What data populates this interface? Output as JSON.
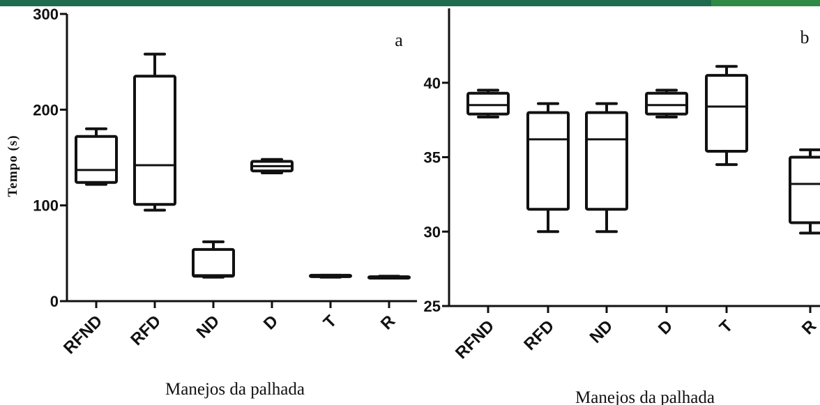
{
  "colors": {
    "top_band": "#1f6b4f",
    "top_band_accent": "#2f8a45",
    "ink": "#111111",
    "background": "#ffffff"
  },
  "chart_data": [
    {
      "type": "box",
      "panel_label": "a",
      "ylabel": "Tempo (s)",
      "xlabel": "Manejos da palhada",
      "ylim": [
        0,
        300
      ],
      "yticks": [
        "0",
        "100",
        "200",
        "300"
      ],
      "categories": [
        "RFND",
        "RFD",
        "ND",
        "D",
        "T",
        "R"
      ],
      "boxes": [
        {
          "category": "RFND",
          "min": 122,
          "q1": 124,
          "median": 137,
          "q3": 172,
          "max": 180
        },
        {
          "category": "RFD",
          "min": 95,
          "q1": 101,
          "median": 142,
          "q3": 235,
          "max": 258
        },
        {
          "category": "ND",
          "min": 25,
          "q1": 26,
          "median": 27,
          "q3": 54,
          "max": 62
        },
        {
          "category": "D",
          "min": 134,
          "q1": 136,
          "median": 141,
          "q3": 146,
          "max": 148
        },
        {
          "category": "T",
          "min": 25,
          "q1": 26,
          "median": 26,
          "q3": 27,
          "max": 27
        },
        {
          "category": "R",
          "min": 24,
          "q1": 24.5,
          "median": 25,
          "q3": 25.5,
          "max": 26
        }
      ]
    },
    {
      "type": "box",
      "panel_label": "b",
      "ylabel": "",
      "xlabel": "Manejos da palhada",
      "ylim": [
        25,
        45
      ],
      "yticks": [
        "25",
        "30",
        "35",
        "40"
      ],
      "categories": [
        "RFND",
        "RFD",
        "ND",
        "D",
        "T",
        "R"
      ],
      "boxes": [
        {
          "category": "RFND",
          "min": 37.7,
          "q1": 37.9,
          "median": 38.5,
          "q3": 39.3,
          "max": 39.5
        },
        {
          "category": "RFD",
          "min": 30,
          "q1": 31.5,
          "median": 36.2,
          "q3": 38,
          "max": 38.6
        },
        {
          "category": "ND",
          "min": 30,
          "q1": 31.5,
          "median": 36.2,
          "q3": 38,
          "max": 38.6
        },
        {
          "category": "D",
          "min": 37.7,
          "q1": 37.9,
          "median": 38.5,
          "q3": 39.3,
          "max": 39.5
        },
        {
          "category": "T",
          "min": 34.5,
          "q1": 35.4,
          "median": 38.4,
          "q3": 40.5,
          "max": 41.1
        },
        {
          "category": "R",
          "min": 29.9,
          "q1": 30.6,
          "median": 33.2,
          "q3": 35,
          "max": 35.5
        }
      ]
    }
  ]
}
